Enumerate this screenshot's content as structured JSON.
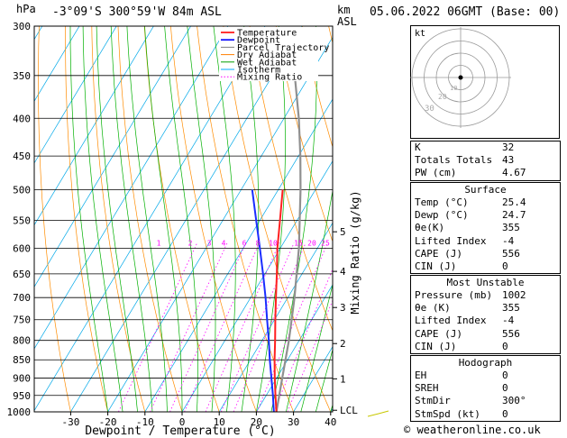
{
  "header": {
    "pressure_unit": "hPa",
    "location": "-3°09'S 300°59'W 84m ASL",
    "height_unit_top": "km",
    "height_unit_bottom": "ASL",
    "datetime": "05.06.2022 06GMT (Base: 00)"
  },
  "chart_data": {
    "type": "line",
    "title": "Skew-T log-P diagram",
    "xlabel": "Dewpoint / Temperature (°C)",
    "ylabel": "",
    "right_ylabel": "Mixing Ratio (g/kg)",
    "pressure_levels": [
      300,
      350,
      400,
      450,
      500,
      550,
      600,
      650,
      700,
      750,
      800,
      850,
      900,
      950,
      1000
    ],
    "temperature_ticks": [
      -30,
      -20,
      -10,
      0,
      10,
      20,
      30,
      40
    ],
    "xlim": [
      -35,
      40
    ],
    "ylim": [
      1000,
      300
    ],
    "km_ticks": [
      {
        "label": "5",
        "p": 570
      },
      {
        "label": "4",
        "p": 645
      },
      {
        "label": "3",
        "p": 722
      },
      {
        "label": "2",
        "p": 808
      },
      {
        "label": "1",
        "p": 902
      },
      {
        "label": "LCL",
        "p": 995
      }
    ],
    "mixing_ratio_labels": [
      "1",
      "2",
      "3",
      "4",
      "6",
      "8",
      "10",
      "15",
      "20",
      "25"
    ],
    "mixing_ratio_values": [
      1,
      2,
      3,
      4,
      6,
      8,
      10,
      15,
      20,
      25
    ],
    "legend": [
      "Temperature",
      "Dewpoint",
      "Parcel Trajectory",
      "Dry Adiabat",
      "Wet Adiabat",
      "Isotherm",
      "Mixing Ratio"
    ],
    "legend_colors": [
      "#ff0000",
      "#0000ff",
      "#808080",
      "#ff8000",
      "#00a000",
      "#00aaff",
      "#ff00ff"
    ],
    "temperature": {
      "p": [
        1000,
        950,
        900,
        850,
        800,
        750,
        700,
        650,
        600,
        550,
        500
      ],
      "t": [
        25.4,
        22.5,
        19.5,
        16.5,
        13.5,
        10.2,
        6.8,
        3.2,
        -0.8,
        -4.6,
        -8.8
      ]
    },
    "dewpoint": {
      "p": [
        1000,
        950,
        900,
        850,
        800,
        750,
        700,
        650,
        600,
        550,
        500
      ],
      "t": [
        24.7,
        21.8,
        18.6,
        15.2,
        11.8,
        8.0,
        4.0,
        -0.5,
        -5.5,
        -11.0,
        -17.0
      ]
    },
    "parcel": {
      "p": [
        1000,
        900,
        800,
        700,
        600,
        500,
        450,
        400,
        350
      ],
      "t": [
        25.4,
        21.5,
        17.2,
        11.8,
        5.0,
        -4.0,
        -9.5,
        -16.0,
        -24.0
      ]
    }
  },
  "hodograph": {
    "unit": "kt",
    "rings": [
      "10",
      "20",
      "30",
      "40"
    ]
  },
  "indices": {
    "rows": [
      {
        "k": "K",
        "v": "32"
      },
      {
        "k": "Totals Totals",
        "v": "43"
      },
      {
        "k": "PW (cm)",
        "v": "4.67"
      }
    ],
    "surface": {
      "title": "Surface",
      "rows": [
        {
          "k": "Temp (°C)",
          "v": "25.4"
        },
        {
          "k": "Dewp (°C)",
          "v": "24.7"
        },
        {
          "k": "θe(K)",
          "v": "355"
        },
        {
          "k": "Lifted Index",
          "v": "-4"
        },
        {
          "k": "CAPE (J)",
          "v": "556"
        },
        {
          "k": "CIN (J)",
          "v": "0"
        }
      ]
    },
    "unstable": {
      "title": "Most Unstable",
      "rows": [
        {
          "k": "Pressure (mb)",
          "v": "1002"
        },
        {
          "k": "θe (K)",
          "v": "355"
        },
        {
          "k": "Lifted Index",
          "v": "-4"
        },
        {
          "k": "CAPE (J)",
          "v": "556"
        },
        {
          "k": "CIN (J)",
          "v": "0"
        }
      ]
    },
    "hodo": {
      "title": "Hodograph",
      "rows": [
        {
          "k": "EH",
          "v": "0"
        },
        {
          "k": "SREH",
          "v": "0"
        },
        {
          "k": "StmDir",
          "v": "300°"
        },
        {
          "k": "StmSpd (kt)",
          "v": "0"
        }
      ]
    }
  },
  "footer": {
    "copyright": "© weatheronline.co.uk"
  }
}
